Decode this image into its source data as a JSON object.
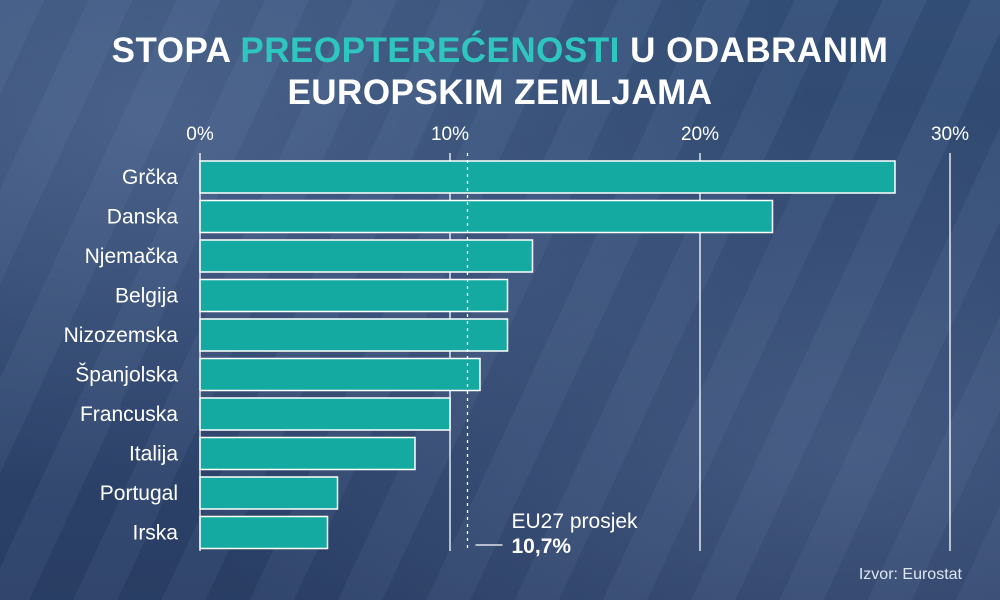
{
  "header": {
    "title_part1": "STOPA",
    "title_highlight": "PREOPTEREĆENOSTI",
    "title_part2": "U ODABRANIM",
    "title_line2": "EUROPSKIM ZEMLJAMA",
    "highlight_color": "#2ec7c0"
  },
  "chart_data": {
    "type": "bar",
    "orientation": "horizontal",
    "categories": [
      "Grčka",
      "Danska",
      "Njemačka",
      "Belgija",
      "Nizozemska",
      "Španjolska",
      "Francuska",
      "Italija",
      "Portugal",
      "Irska"
    ],
    "values": [
      27.8,
      22.9,
      13.3,
      12.3,
      12.3,
      11.2,
      10.0,
      8.6,
      5.5,
      5.1
    ],
    "x_ticks": [
      "0%",
      "10%",
      "20%",
      "30%"
    ],
    "x_tick_values": [
      0,
      10,
      20,
      30
    ],
    "xlim": [
      0,
      30
    ],
    "grid": true,
    "bar_color": "#14aaa2",
    "reference_line": {
      "value": 10.7,
      "label": "EU27 prosjek",
      "value_label": "10,7%"
    }
  },
  "footer": {
    "source": "Izvor: Eurostat"
  }
}
